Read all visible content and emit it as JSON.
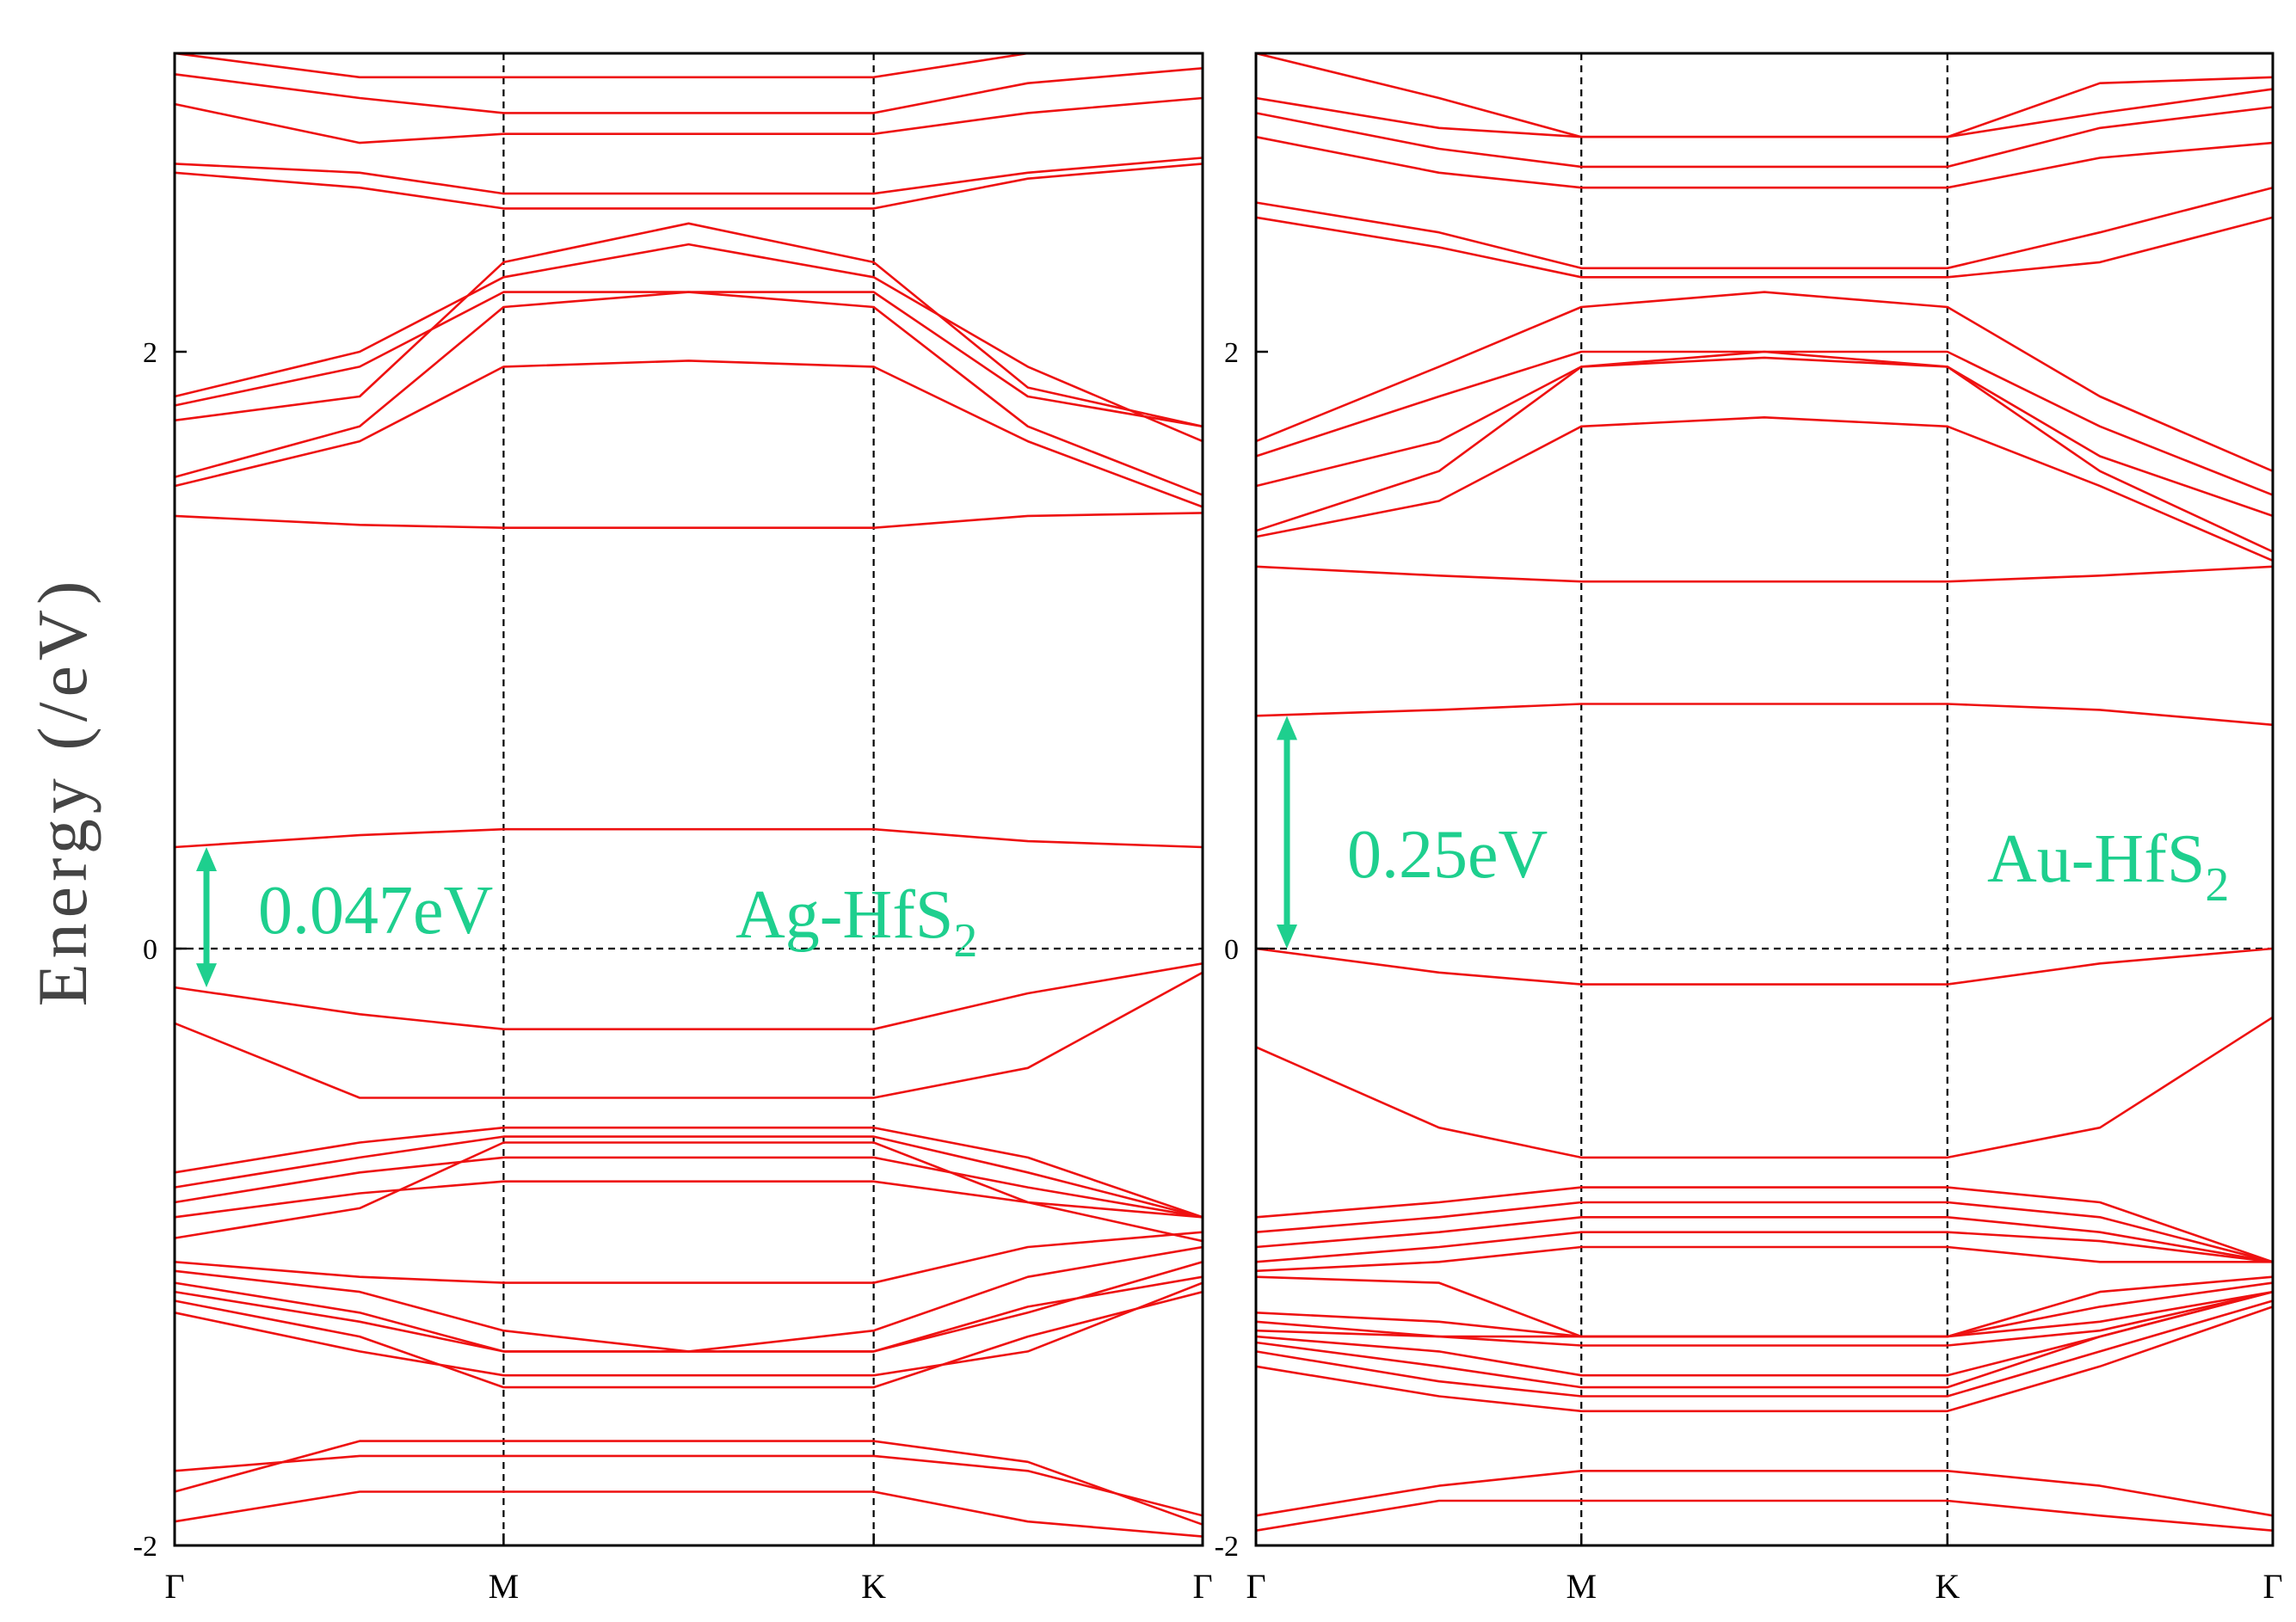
{
  "ylabel": "Energy (/eV)",
  "chart_data": [
    {
      "type": "line",
      "title": "Ag-HfS2",
      "label_main": "Ag-HfS",
      "label_sub": "2",
      "gap_label": "0.047eV",
      "gap_from": -0.13,
      "gap_to": 0.34,
      "ylim": [
        -2,
        3.0
      ],
      "yticks": [
        -2,
        0,
        2
      ],
      "ytick_labels": [
        "-2",
        "0",
        "2"
      ],
      "x_labels": [
        "Γ",
        "M",
        "K",
        "Γ"
      ],
      "k_points": [
        0,
        0.18,
        0.32,
        0.5,
        0.68,
        0.83,
        1
      ],
      "band_color": "#ee1111",
      "gap_color": "#1ecf8e",
      "series": [
        {
          "name": "b1",
          "values": [
            -2.0,
            -2.0,
            -2.0,
            -2.0,
            -2.0,
            -2.0,
            -2.0
          ]
        },
        {
          "name": "b2",
          "values": [
            -1.92,
            -1.82,
            -1.82,
            -1.82,
            -1.82,
            -1.92,
            -1.97
          ]
        },
        {
          "name": "b3",
          "values": [
            -1.82,
            -1.65,
            -1.65,
            -1.65,
            -1.65,
            -1.72,
            -1.93
          ]
        },
        {
          "name": "b4",
          "values": [
            -1.75,
            -1.7,
            -1.7,
            -1.7,
            -1.7,
            -1.75,
            -1.9
          ]
        },
        {
          "name": "b5",
          "values": [
            -1.15,
            -1.25,
            -1.35,
            -1.35,
            -1.35,
            -1.2,
            -1.1
          ]
        },
        {
          "name": "b6",
          "values": [
            -1.18,
            -1.3,
            -1.47,
            -1.47,
            -1.47,
            -1.3,
            -1.15
          ]
        },
        {
          "name": "b7",
          "values": [
            -1.22,
            -1.35,
            -1.43,
            -1.43,
            -1.43,
            -1.35,
            -1.12
          ]
        },
        {
          "name": "b8",
          "values": [
            -1.12,
            -1.22,
            -1.35,
            -1.35,
            -1.35,
            -1.22,
            -1.05
          ]
        },
        {
          "name": "b9",
          "values": [
            -1.08,
            -1.15,
            -1.28,
            -1.35,
            -1.28,
            -1.1,
            -1.0
          ]
        },
        {
          "name": "b10",
          "values": [
            -1.05,
            -1.1,
            -1.12,
            -1.12,
            -1.12,
            -1.0,
            -0.95
          ]
        },
        {
          "name": "b11",
          "values": [
            -0.97,
            -0.87,
            -0.65,
            -0.65,
            -0.65,
            -0.85,
            -0.98
          ]
        },
        {
          "name": "b12",
          "values": [
            -0.9,
            -0.82,
            -0.78,
            -0.78,
            -0.78,
            -0.85,
            -0.9
          ]
        },
        {
          "name": "b13",
          "values": [
            -0.85,
            -0.75,
            -0.7,
            -0.7,
            -0.7,
            -0.8,
            -0.9
          ]
        },
        {
          "name": "b14",
          "values": [
            -0.8,
            -0.7,
            -0.63,
            -0.63,
            -0.63,
            -0.75,
            -0.9
          ]
        },
        {
          "name": "b15",
          "values": [
            -0.75,
            -0.65,
            -0.6,
            -0.6,
            -0.6,
            -0.7,
            -0.9
          ]
        },
        {
          "name": "b16",
          "values": [
            -0.25,
            -0.5,
            -0.5,
            -0.5,
            -0.5,
            -0.4,
            -0.08
          ]
        },
        {
          "name": "b17",
          "values": [
            -0.13,
            -0.22,
            -0.27,
            -0.27,
            -0.27,
            -0.15,
            -0.05
          ]
        },
        {
          "name": "b18",
          "values": [
            0.34,
            0.38,
            0.4,
            0.4,
            0.4,
            0.36,
            0.34
          ]
        },
        {
          "name": "b19",
          "values": [
            1.45,
            1.42,
            1.41,
            1.41,
            1.41,
            1.45,
            1.46
          ]
        },
        {
          "name": "b20",
          "values": [
            1.55,
            1.7,
            1.95,
            1.97,
            1.95,
            1.7,
            1.48
          ]
        },
        {
          "name": "b21",
          "values": [
            1.58,
            1.75,
            2.15,
            2.2,
            2.15,
            1.75,
            1.52
          ]
        },
        {
          "name": "b22",
          "values": [
            1.77,
            1.85,
            2.3,
            2.43,
            2.3,
            1.88,
            1.75
          ]
        },
        {
          "name": "b23",
          "values": [
            1.82,
            1.95,
            2.2,
            2.2,
            2.2,
            1.85,
            1.75
          ]
        },
        {
          "name": "b24",
          "values": [
            1.85,
            2.0,
            2.25,
            2.36,
            2.25,
            1.95,
            1.7
          ]
        },
        {
          "name": "b25",
          "values": [
            2.6,
            2.55,
            2.48,
            2.48,
            2.48,
            2.58,
            2.63
          ]
        },
        {
          "name": "b26",
          "values": [
            2.63,
            2.6,
            2.53,
            2.53,
            2.53,
            2.6,
            2.65
          ]
        },
        {
          "name": "b27",
          "values": [
            2.83,
            2.7,
            2.73,
            2.73,
            2.73,
            2.8,
            2.85
          ]
        },
        {
          "name": "b28",
          "values": [
            2.93,
            2.85,
            2.8,
            2.8,
            2.8,
            2.9,
            2.95
          ]
        },
        {
          "name": "b29",
          "values": [
            3.0,
            2.92,
            2.92,
            2.92,
            2.92,
            3.0,
            3.0
          ]
        }
      ]
    },
    {
      "type": "line",
      "title": "Au-HfS2",
      "label_main": "Au-HfS",
      "label_sub": "2",
      "gap_label": "0.25eV",
      "gap_from": 0.0,
      "gap_to": 0.78,
      "ylim": [
        -2,
        3.0
      ],
      "yticks": [
        -2,
        0,
        2
      ],
      "ytick_labels": [
        "-2",
        "0",
        "2"
      ],
      "x_labels": [
        "Γ",
        "M",
        "K",
        "Γ"
      ],
      "k_points": [
        0,
        0.18,
        0.32,
        0.5,
        0.68,
        0.83,
        1
      ],
      "band_color": "#ee1111",
      "gap_color": "#1ecf8e",
      "series": [
        {
          "name": "b1",
          "values": [
            -1.95,
            -1.85,
            -1.85,
            -1.85,
            -1.85,
            -1.9,
            -1.95
          ]
        },
        {
          "name": "b2",
          "values": [
            -1.9,
            -1.8,
            -1.75,
            -1.75,
            -1.75,
            -1.8,
            -1.9
          ]
        },
        {
          "name": "b3",
          "values": [
            -1.4,
            -1.5,
            -1.55,
            -1.55,
            -1.55,
            -1.4,
            -1.2
          ]
        },
        {
          "name": "b4",
          "values": [
            -1.35,
            -1.45,
            -1.5,
            -1.5,
            -1.5,
            -1.35,
            -1.18
          ]
        },
        {
          "name": "b5",
          "values": [
            -1.32,
            -1.4,
            -1.47,
            -1.47,
            -1.47,
            -1.3,
            -1.15
          ]
        },
        {
          "name": "b6",
          "values": [
            -1.3,
            -1.35,
            -1.43,
            -1.43,
            -1.43,
            -1.3,
            -1.15
          ]
        },
        {
          "name": "b7",
          "values": [
            -1.28,
            -1.3,
            -1.33,
            -1.33,
            -1.33,
            -1.28,
            -1.15
          ]
        },
        {
          "name": "b8",
          "values": [
            -1.25,
            -1.3,
            -1.3,
            -1.3,
            -1.3,
            -1.25,
            -1.15
          ]
        },
        {
          "name": "b9",
          "values": [
            -1.22,
            -1.25,
            -1.3,
            -1.3,
            -1.3,
            -1.2,
            -1.12
          ]
        },
        {
          "name": "b10",
          "values": [
            -1.1,
            -1.12,
            -1.3,
            -1.3,
            -1.3,
            -1.15,
            -1.1
          ]
        },
        {
          "name": "b11",
          "values": [
            -1.08,
            -1.05,
            -1.0,
            -1.0,
            -1.0,
            -1.05,
            -1.05
          ]
        },
        {
          "name": "b12",
          "values": [
            -1.05,
            -1.0,
            -0.95,
            -0.95,
            -0.95,
            -0.98,
            -1.05
          ]
        },
        {
          "name": "b13",
          "values": [
            -1.0,
            -0.95,
            -0.9,
            -0.9,
            -0.9,
            -0.95,
            -1.05
          ]
        },
        {
          "name": "b14",
          "values": [
            -0.95,
            -0.9,
            -0.85,
            -0.85,
            -0.85,
            -0.9,
            -1.05
          ]
        },
        {
          "name": "b15",
          "values": [
            -0.9,
            -0.85,
            -0.8,
            -0.8,
            -0.8,
            -0.85,
            -1.05
          ]
        },
        {
          "name": "b16",
          "values": [
            -0.33,
            -0.6,
            -0.7,
            -0.7,
            -0.7,
            -0.6,
            -0.23
          ]
        },
        {
          "name": "b17",
          "values": [
            0.0,
            -0.08,
            -0.12,
            -0.12,
            -0.12,
            -0.05,
            0.0
          ]
        },
        {
          "name": "b18",
          "values": [
            0.78,
            0.8,
            0.82,
            0.82,
            0.82,
            0.8,
            0.75
          ]
        },
        {
          "name": "b19",
          "values": [
            1.28,
            1.25,
            1.23,
            1.23,
            1.23,
            1.25,
            1.28
          ]
        },
        {
          "name": "b20",
          "values": [
            1.38,
            1.5,
            1.75,
            1.78,
            1.75,
            1.55,
            1.3
          ]
        },
        {
          "name": "b21",
          "values": [
            1.4,
            1.6,
            1.95,
            1.98,
            1.95,
            1.6,
            1.33
          ]
        },
        {
          "name": "b22",
          "values": [
            1.55,
            1.7,
            1.95,
            2.0,
            1.95,
            1.65,
            1.45
          ]
        },
        {
          "name": "b23",
          "values": [
            1.65,
            1.85,
            2.0,
            2.0,
            2.0,
            1.75,
            1.52
          ]
        },
        {
          "name": "b24",
          "values": [
            1.7,
            1.95,
            2.15,
            2.2,
            2.15,
            1.85,
            1.6
          ]
        },
        {
          "name": "b25",
          "values": [
            2.45,
            2.35,
            2.25,
            2.25,
            2.25,
            2.3,
            2.45
          ]
        },
        {
          "name": "b26",
          "values": [
            2.5,
            2.4,
            2.28,
            2.28,
            2.28,
            2.4,
            2.55
          ]
        },
        {
          "name": "b27",
          "values": [
            2.72,
            2.6,
            2.55,
            2.55,
            2.55,
            2.65,
            2.7
          ]
        },
        {
          "name": "b28",
          "values": [
            2.8,
            2.68,
            2.62,
            2.62,
            2.62,
            2.75,
            2.82
          ]
        },
        {
          "name": "b29",
          "values": [
            2.85,
            2.75,
            2.72,
            2.72,
            2.72,
            2.8,
            2.88
          ]
        },
        {
          "name": "b30",
          "values": [
            3.0,
            2.85,
            2.72,
            2.72,
            2.72,
            2.9,
            2.92
          ]
        }
      ]
    }
  ]
}
